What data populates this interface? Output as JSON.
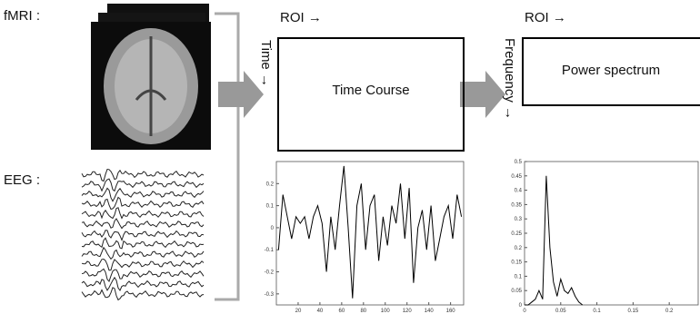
{
  "labels": {
    "fmri": "fMRI :",
    "eeg": "EEG :",
    "roi_1": "ROI →",
    "time_axis": "Time →",
    "time_course": "Time Course",
    "roi_2": "ROI →",
    "frequency_axis": "Frequency →",
    "power_spectrum": "Power spectrum"
  },
  "plots": {
    "time_course": {
      "xlim": [
        0,
        172
      ],
      "ylim": [
        -0.35,
        0.3
      ],
      "xticks": [
        20,
        40,
        60,
        80,
        100,
        120,
        140,
        160
      ],
      "yticks": [
        -0.3,
        -0.2,
        -0.1,
        0,
        0.1,
        0.2
      ],
      "x": [
        2,
        6,
        10,
        14,
        18,
        22,
        26,
        30,
        34,
        38,
        42,
        46,
        50,
        54,
        58,
        62,
        66,
        70,
        74,
        78,
        82,
        86,
        90,
        94,
        98,
        102,
        106,
        110,
        114,
        118,
        122,
        126,
        130,
        134,
        138,
        142,
        146,
        150,
        154,
        158,
        162,
        166,
        170
      ],
      "values": [
        -0.1,
        0.15,
        0.05,
        -0.05,
        0.05,
        0.02,
        0.05,
        -0.05,
        0.05,
        0.1,
        0.02,
        -0.2,
        0.05,
        -0.1,
        0.1,
        0.28,
        0.0,
        -0.32,
        0.1,
        0.2,
        -0.1,
        0.1,
        0.15,
        -0.15,
        0.05,
        -0.08,
        0.1,
        0.02,
        0.2,
        -0.05,
        0.18,
        -0.25,
        0.0,
        0.08,
        -0.1,
        0.1,
        -0.15,
        -0.05,
        0.05,
        0.1,
        -0.05,
        0.15,
        0.05
      ]
    },
    "power_spectrum": {
      "xlim": [
        0,
        0.24
      ],
      "ylim": [
        0,
        0.5
      ],
      "xticks": [
        0,
        0.05,
        0.1,
        0.15,
        0.2
      ],
      "yticks": [
        0,
        0.05,
        0.1,
        0.15,
        0.2,
        0.25,
        0.3,
        0.35,
        0.4,
        0.45,
        0.5
      ],
      "x": [
        0,
        0.005,
        0.01,
        0.015,
        0.02,
        0.025,
        0.03,
        0.035,
        0.04,
        0.045,
        0.05,
        0.055,
        0.06,
        0.065,
        0.07,
        0.075,
        0.08
      ],
      "values": [
        0,
        0,
        0.01,
        0.02,
        0.05,
        0.02,
        0.45,
        0.2,
        0.08,
        0.03,
        0.09,
        0.05,
        0.04,
        0.06,
        0.03,
        0.01,
        0
      ]
    }
  }
}
